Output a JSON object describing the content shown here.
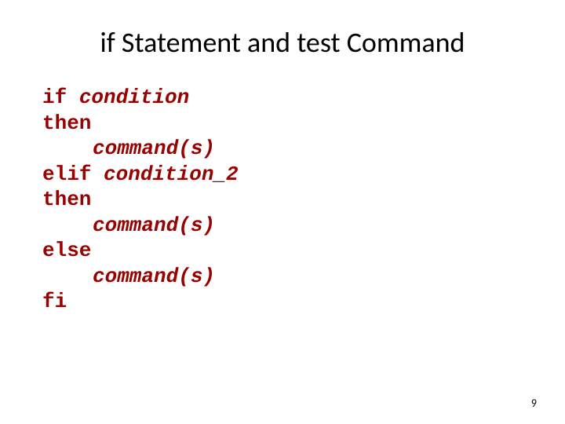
{
  "slide": {
    "title": "if Statement and test Command",
    "page_number": "9",
    "title_fontsize": 36,
    "code_fontsize": 26,
    "title_color": "#000000",
    "code_color": "#990000",
    "background_color": "#ffffff",
    "code": {
      "line1_kw": "if ",
      "line1_it": "condition",
      "line2_kw": "then",
      "line3_it": "command(s)",
      "line4_kw": "elif ",
      "line4_it": "condition_2",
      "line5_kw": "then",
      "line6_it": "command(s)",
      "line7_kw": "else",
      "line8_it": "command(s)",
      "line9_kw": "fi"
    }
  }
}
